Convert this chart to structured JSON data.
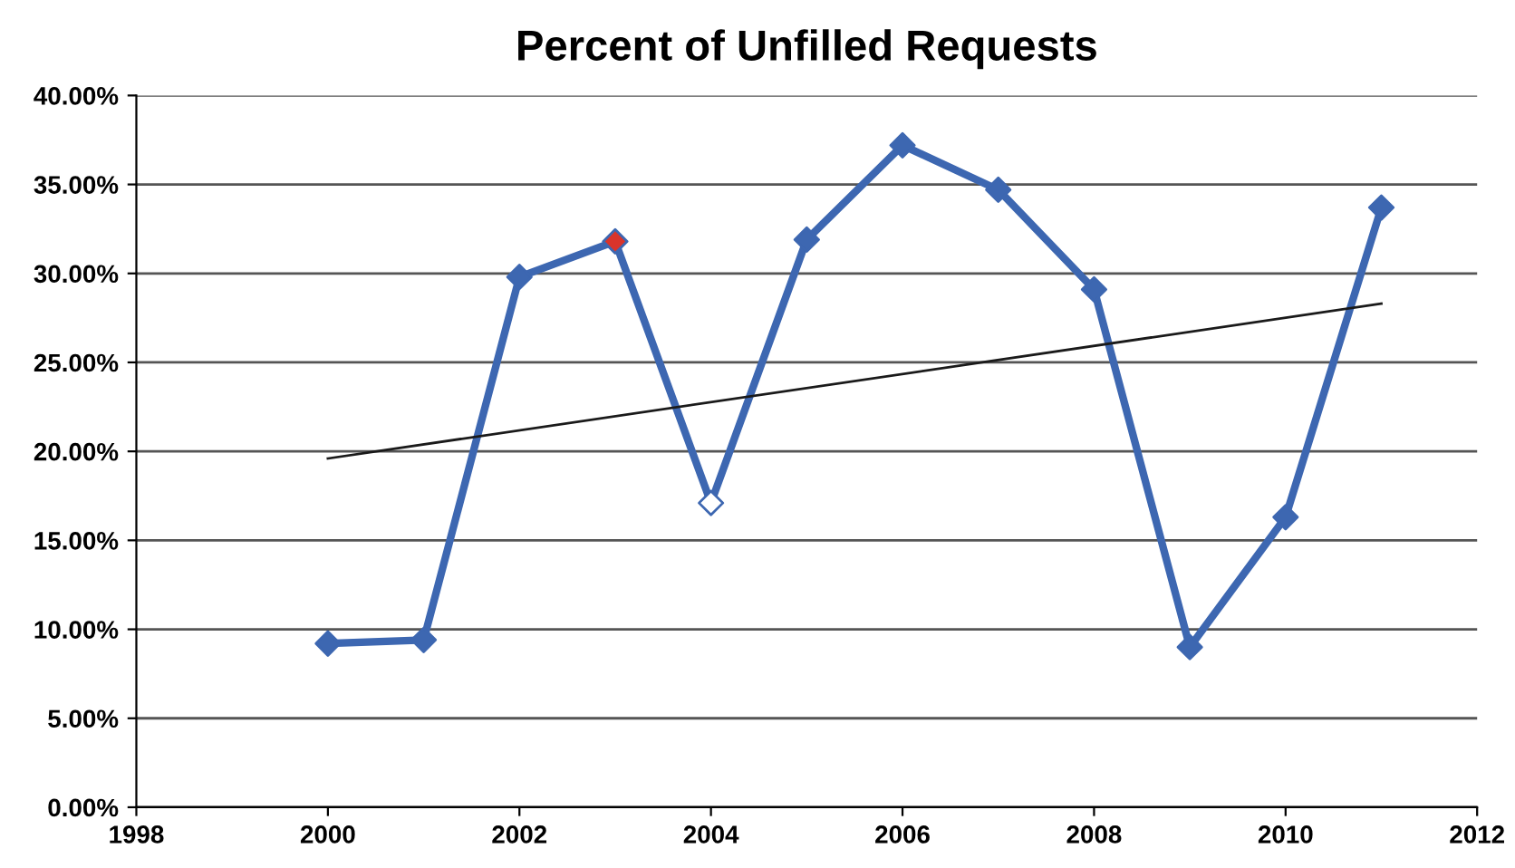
{
  "chart_data": {
    "type": "line",
    "title": "Percent of Unfilled Requests",
    "x": [
      2000,
      2001,
      2002,
      2003,
      2004,
      2005,
      2006,
      2007,
      2008,
      2009,
      2010,
      2011
    ],
    "series": [
      {
        "color": "#3d67b1",
        "marker": "diamond",
        "values": [
          9.2,
          9.4,
          29.8,
          31.8,
          17.1,
          31.9,
          37.2,
          34.7,
          29.1,
          9.0,
          16.3,
          33.7
        ],
        "colors": [
          "#3d67b1",
          "#3d67b1",
          "#3d67b1",
          "#d9342b",
          "#ffffff",
          "#3d67b1",
          "#3d67b1",
          "#3d67b1",
          "#3d67b1",
          "#3d67b1",
          "#3d67b1",
          "#3d67b1"
        ]
      },
      {
        "type": "line",
        "color": "#1a1a1a",
        "marker": "none",
        "x": [
          2000,
          2011
        ],
        "values": [
          19.6,
          28.3
        ]
      }
    ],
    "xlim": [
      1998,
      2012
    ],
    "xticks": [
      1998,
      2000,
      2002,
      2004,
      2006,
      2008,
      2010,
      2012
    ],
    "ylim": [
      0,
      40
    ],
    "yticks": [
      {
        "value": 0,
        "label": "0.00%"
      },
      {
        "value": 5,
        "label": "5.00%"
      },
      {
        "value": 10,
        "label": "10.00%"
      },
      {
        "value": 15,
        "label": "15.00%"
      },
      {
        "value": 20,
        "label": "20.00%"
      },
      {
        "value": 25,
        "label": "25.00%"
      },
      {
        "value": 30,
        "label": "30.00%"
      },
      {
        "value": 35,
        "label": "35.00%"
      },
      {
        "value": 40,
        "label": "40.00%"
      }
    ],
    "grid": "y"
  }
}
